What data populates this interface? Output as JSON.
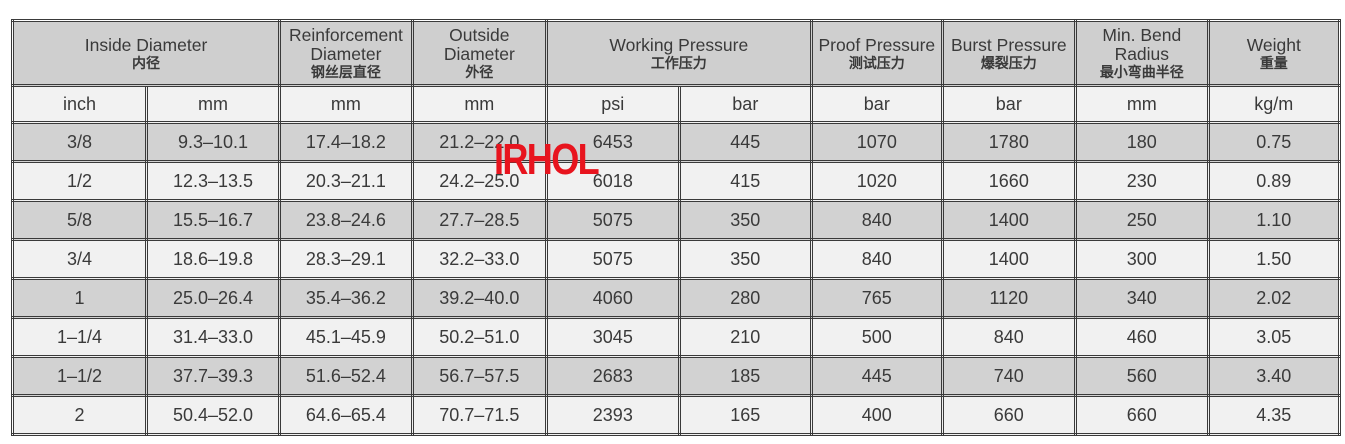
{
  "headers": [
    {
      "en": "Inside Diameter",
      "zh": "内径"
    },
    {
      "en": "Reinforcement Diameter",
      "zh": "钢丝层直径"
    },
    {
      "en": "Outside Diameter",
      "zh": "外径"
    },
    {
      "en": "Working Pressure",
      "zh": "工作压力"
    },
    {
      "en": "Proof Pressure",
      "zh": "测试压力"
    },
    {
      "en": "Burst Pressure",
      "zh": "爆裂压力"
    },
    {
      "en": "Min. Bend Radius",
      "zh": "最小弯曲半径"
    },
    {
      "en": "Weight",
      "zh": "重量"
    }
  ],
  "units": [
    "inch",
    "mm",
    "mm",
    "mm",
    "psi",
    "bar",
    "bar",
    "bar",
    "mm",
    "kg/m"
  ],
  "rows": [
    [
      "3/8",
      "9.3–10.1",
      "17.4–18.2",
      "21.2–22.0",
      "6453",
      "445",
      "1070",
      "1780",
      "180",
      "0.75"
    ],
    [
      "1/2",
      "12.3–13.5",
      "20.3–21.1",
      "24.2–25.0",
      "6018",
      "415",
      "1020",
      "1660",
      "230",
      "0.89"
    ],
    [
      "5/8",
      "15.5–16.7",
      "23.8–24.6",
      "27.7–28.5",
      "5075",
      "350",
      "840",
      "1400",
      "250",
      "1.10"
    ],
    [
      "3/4",
      "18.6–19.8",
      "28.3–29.1",
      "32.2–33.0",
      "5075",
      "350",
      "840",
      "1400",
      "300",
      "1.50"
    ],
    [
      "1",
      "25.0–26.4",
      "35.4–36.2",
      "39.2–40.0",
      "4060",
      "280",
      "765",
      "1120",
      "340",
      "2.02"
    ],
    [
      "1–1/4",
      "31.4–33.0",
      "45.1–45.9",
      "50.2–51.0",
      "3045",
      "210",
      "500",
      "840",
      "460",
      "3.05"
    ],
    [
      "1–1/2",
      "37.7–39.3",
      "51.6–52.4",
      "56.7–57.5",
      "2683",
      "185",
      "445",
      "740",
      "560",
      "3.40"
    ],
    [
      "2",
      "50.4–52.0",
      "64.6–65.4",
      "70.7–71.5",
      "2393",
      "165",
      "400",
      "660",
      "660",
      "4.35"
    ]
  ],
  "watermark": "IRHOL",
  "colors": {
    "header": "#cfcfcf",
    "row_dark": "#d2d2d2",
    "row_light": "#f1f1f1",
    "watermark": "#e8141e"
  }
}
